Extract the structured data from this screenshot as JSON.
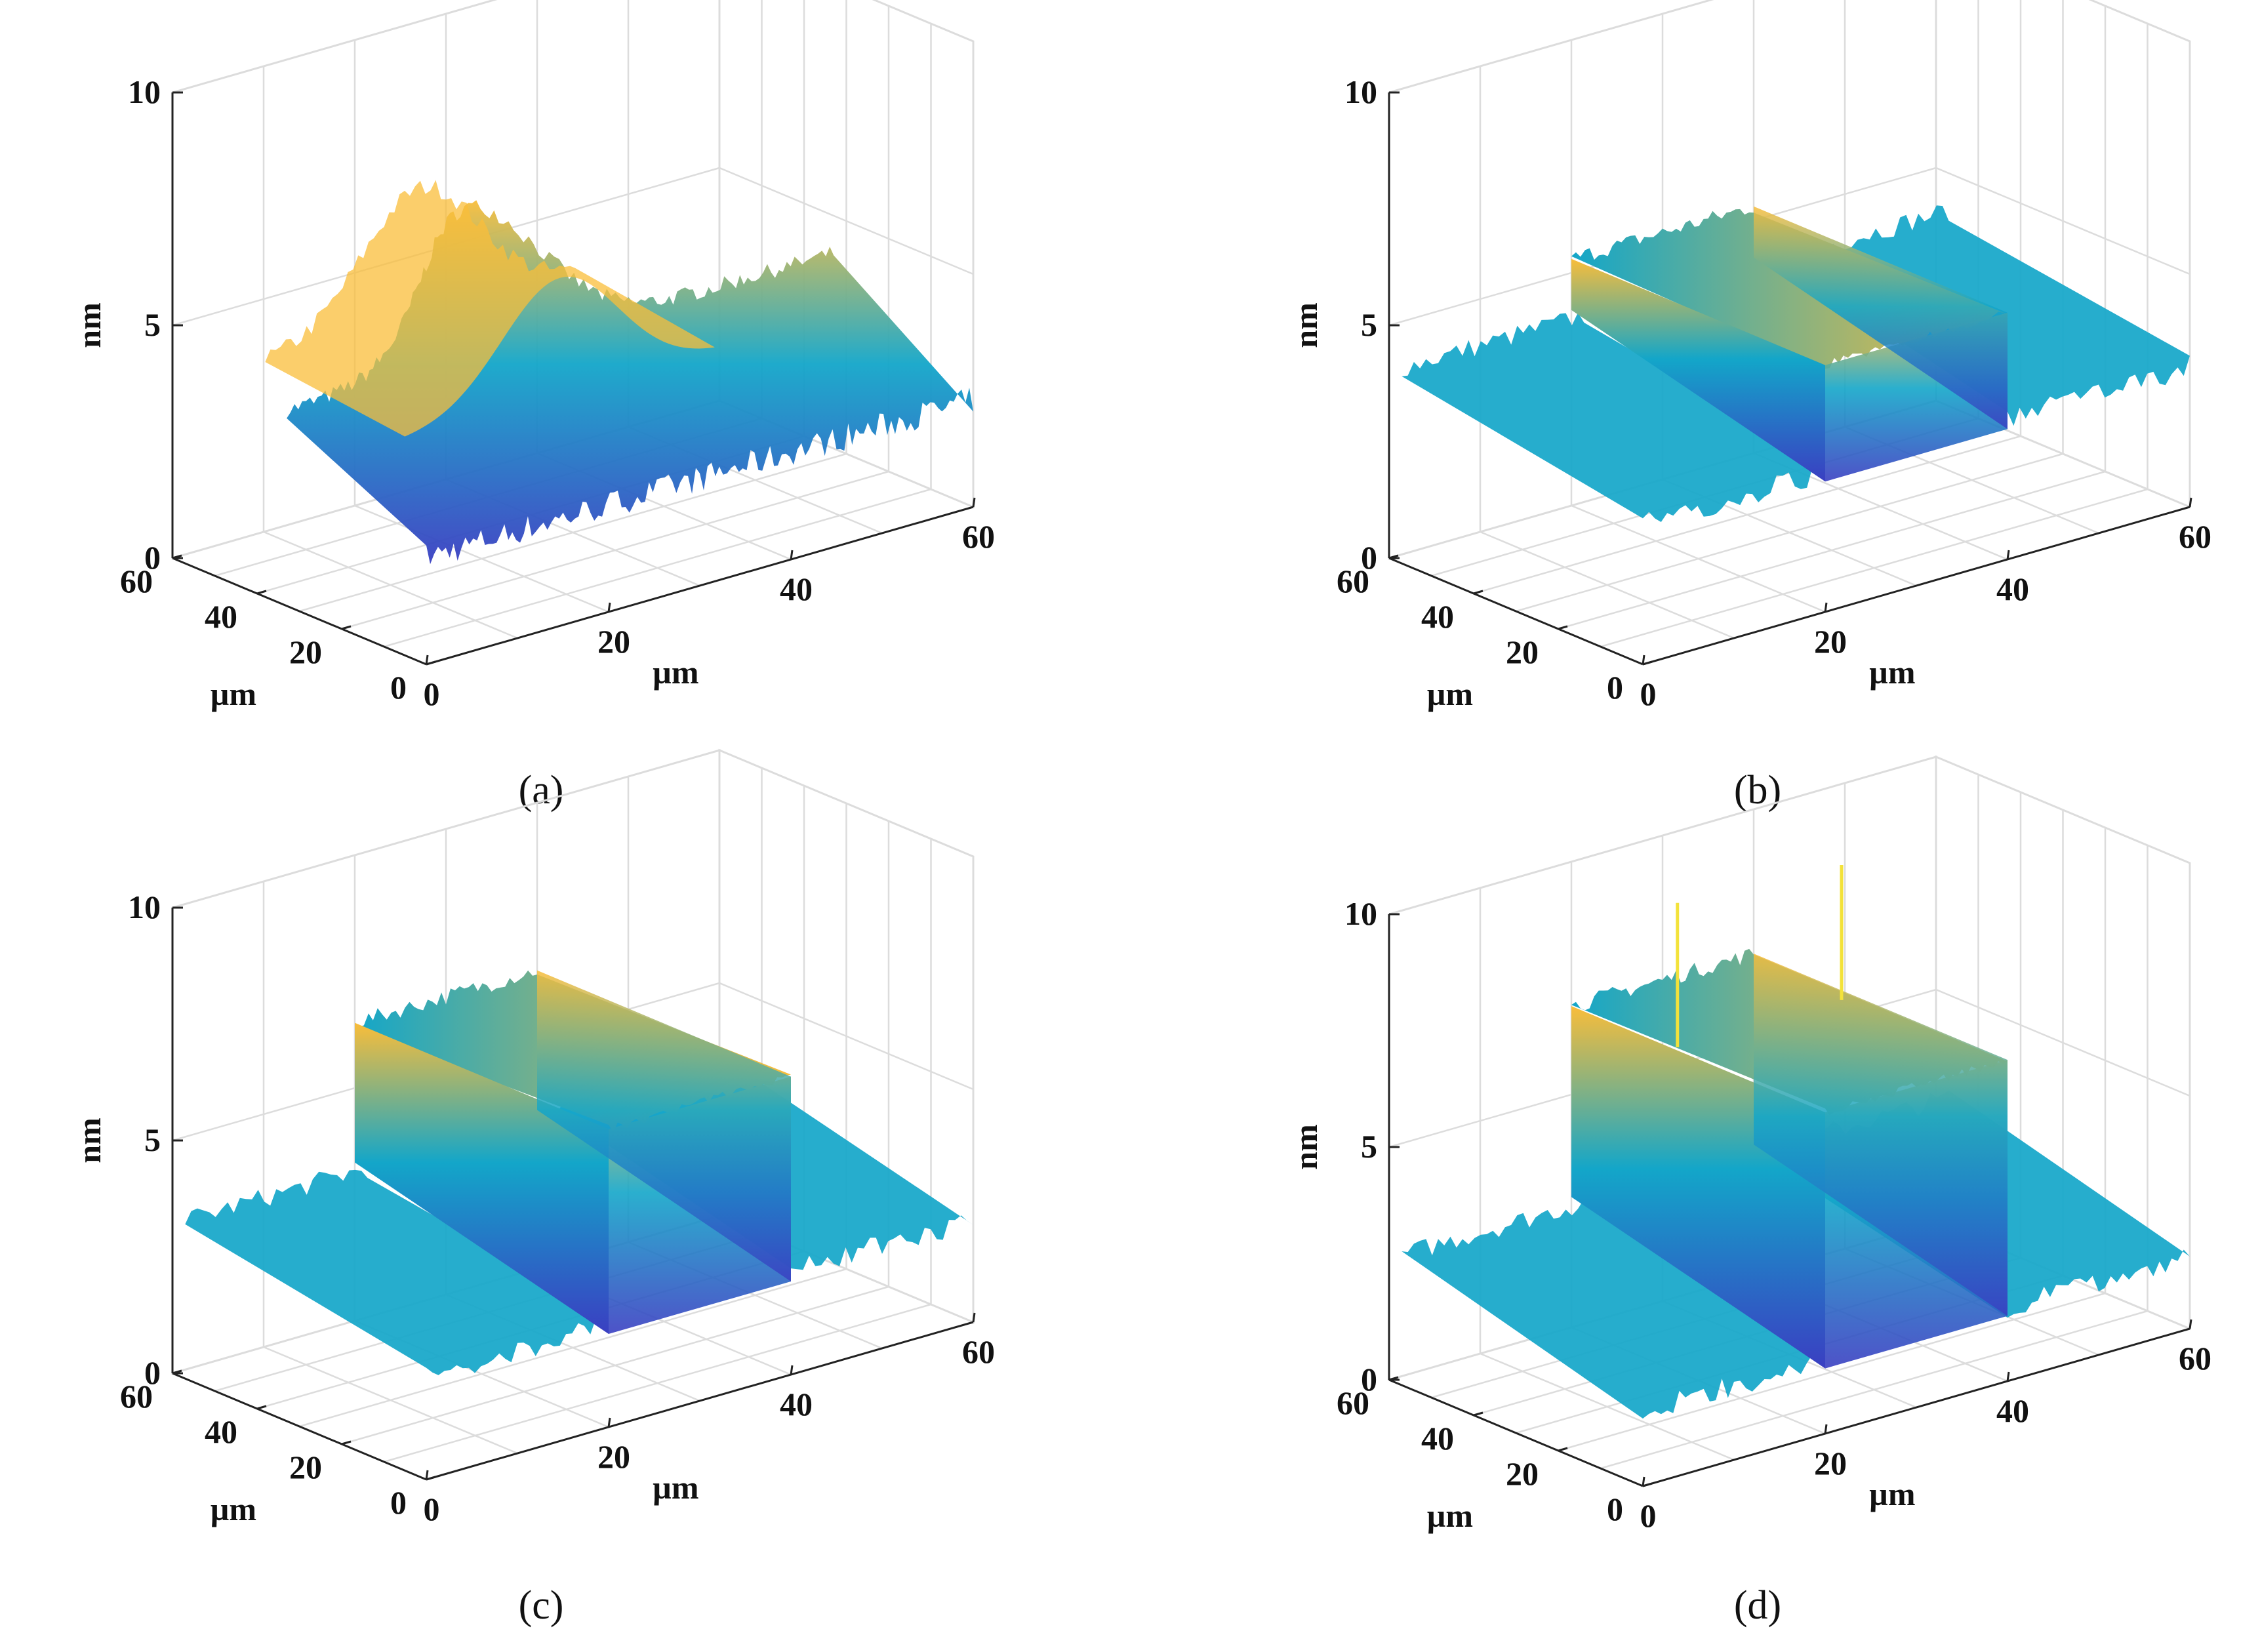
{
  "figure": {
    "colors": {
      "low": "#3a3fc2",
      "mid": "#13a6c9",
      "high": "#f9bd3a",
      "grid": "#dcdcdc",
      "axis": "#222222"
    }
  },
  "chart_data": [
    {
      "type": "surface",
      "panel": "a",
      "caption": "(a)",
      "profile": "smooth-bump",
      "zlabel": "nm",
      "xlabel": "µm",
      "ylabel": "µm",
      "xlim": [
        0,
        60
      ],
      "ylim": [
        0,
        60
      ],
      "zlim": [
        0,
        10
      ],
      "xticks": [
        "0",
        "20",
        "40",
        "60"
      ],
      "yticks": [
        "0",
        "20",
        "40",
        "60"
      ],
      "zticks": [
        "0",
        "5",
        "10"
      ],
      "base_height_nm": 3.2,
      "peak_height_nm": 6.0,
      "feature_x_range_um": [
        10,
        36
      ],
      "grid": true
    },
    {
      "type": "surface",
      "panel": "b",
      "caption": "(b)",
      "profile": "step",
      "zlabel": "nm",
      "xlabel": "µm",
      "ylabel": "µm",
      "xlim": [
        0,
        60
      ],
      "ylim": [
        0,
        60
      ],
      "zlim": [
        0,
        10
      ],
      "xticks": [
        "0",
        "20",
        "40",
        "60"
      ],
      "yticks": [
        "0",
        "20",
        "40",
        "60"
      ],
      "zticks": [
        "0",
        "5",
        "10"
      ],
      "base_height_nm": 3.0,
      "peak_height_nm": 5.3,
      "feature_x_range_um": [
        20,
        40
      ],
      "grid": true
    },
    {
      "type": "surface",
      "panel": "c",
      "caption": "(c)",
      "profile": "step",
      "zlabel": "nm",
      "xlabel": "µm",
      "ylabel": "µm",
      "xlim": [
        0,
        60
      ],
      "ylim": [
        0,
        60
      ],
      "zlim": [
        0,
        10
      ],
      "xticks": [
        "0",
        "20",
        "40",
        "60"
      ],
      "yticks": [
        "0",
        "20",
        "40",
        "60"
      ],
      "zticks": [
        "0",
        "5",
        "10"
      ],
      "base_height_nm": 2.2,
      "peak_height_nm": 6.4,
      "feature_x_range_um": [
        20,
        40
      ],
      "grid": true
    },
    {
      "type": "surface",
      "panel": "d",
      "caption": "(d)",
      "profile": "step",
      "zlabel": "nm",
      "xlabel": "µm",
      "ylabel": "µm",
      "xlim": [
        0,
        60
      ],
      "ylim": [
        0,
        60
      ],
      "zlim": [
        0,
        10
      ],
      "xticks": [
        "0",
        "20",
        "40",
        "60"
      ],
      "yticks": [
        "0",
        "20",
        "40",
        "60"
      ],
      "zticks": [
        "0",
        "5",
        "10"
      ],
      "base_height_nm": 1.6,
      "peak_height_nm": 6.9,
      "feature_x_range_um": [
        20,
        40
      ],
      "spikes_nm": [
        10.0,
        9.8
      ],
      "grid": true
    }
  ]
}
